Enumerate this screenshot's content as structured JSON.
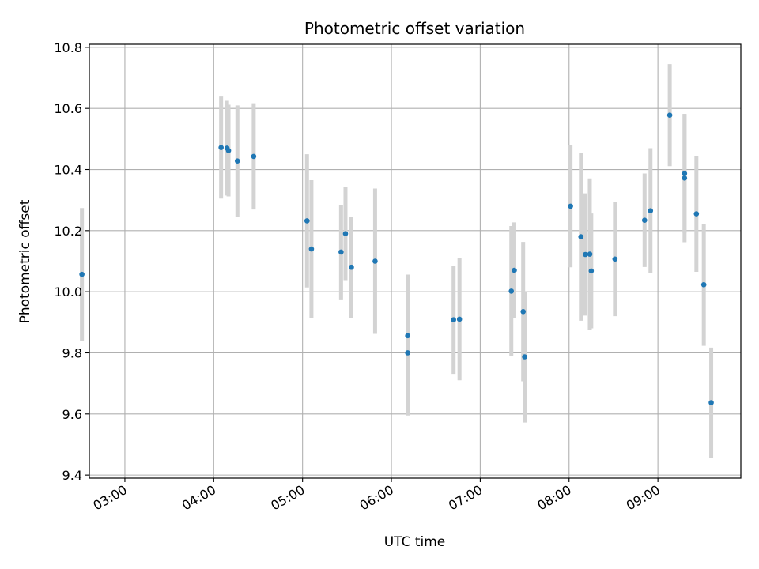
{
  "chart_data": {
    "type": "scatter",
    "title": "Photometric offset variation",
    "xlabel": "UTC time",
    "ylabel": "Photometric offset",
    "xlim": [
      "02:36",
      "09:56"
    ],
    "ylim": [
      9.39,
      10.81
    ],
    "grid": true,
    "x_ticks": [
      "03:00",
      "04:00",
      "05:00",
      "06:00",
      "07:00",
      "08:00",
      "09:00"
    ],
    "y_ticks": [
      9.4,
      9.6,
      9.8,
      10.0,
      10.2,
      10.4,
      10.6,
      10.8
    ],
    "y_tick_labels": [
      "9.4",
      "9.6",
      "9.8",
      "10.0",
      "10.2",
      "10.4",
      "10.6",
      "10.8"
    ],
    "colors": {
      "points": "#1f77b4",
      "errorbars": "#d3d3d3",
      "grid": "#b0b0b0"
    },
    "series": [
      {
        "points": [
          {
            "t": "02:31",
            "y": 10.057,
            "err": 0.217
          },
          {
            "t": "04:05",
            "y": 10.472,
            "err": 0.167
          },
          {
            "t": "04:09",
            "y": 10.47,
            "err": 0.155
          },
          {
            "t": "04:10",
            "y": 10.462,
            "err": 0.15
          },
          {
            "t": "04:16",
            "y": 10.428,
            "err": 0.182
          },
          {
            "t": "04:27",
            "y": 10.443,
            "err": 0.174
          },
          {
            "t": "05:03",
            "y": 10.232,
            "err": 0.218
          },
          {
            "t": "05:06",
            "y": 10.14,
            "err": 0.225
          },
          {
            "t": "05:26",
            "y": 10.13,
            "err": 0.155
          },
          {
            "t": "05:29",
            "y": 10.19,
            "err": 0.152
          },
          {
            "t": "05:33",
            "y": 10.08,
            "err": 0.165
          },
          {
            "t": "05:49",
            "y": 10.1,
            "err": 0.238
          },
          {
            "t": "06:11",
            "y": 9.8,
            "err": 0.205
          },
          {
            "t": "06:11",
            "y": 9.856,
            "err": 0.2
          },
          {
            "t": "06:42",
            "y": 9.908,
            "err": 0.177
          },
          {
            "t": "06:46",
            "y": 9.91,
            "err": 0.2
          },
          {
            "t": "07:21",
            "y": 10.002,
            "err": 0.213
          },
          {
            "t": "07:23",
            "y": 10.07,
            "err": 0.157
          },
          {
            "t": "07:29",
            "y": 9.935,
            "err": 0.228
          },
          {
            "t": "07:30",
            "y": 9.787,
            "err": 0.215
          },
          {
            "t": "08:01",
            "y": 10.28,
            "err": 0.2
          },
          {
            "t": "08:08",
            "y": 10.18,
            "err": 0.275
          },
          {
            "t": "08:11",
            "y": 10.122,
            "err": 0.2
          },
          {
            "t": "08:14",
            "y": 10.123,
            "err": 0.248
          },
          {
            "t": "08:15",
            "y": 10.068,
            "err": 0.188
          },
          {
            "t": "08:31",
            "y": 10.107,
            "err": 0.187
          },
          {
            "t": "08:51",
            "y": 10.234,
            "err": 0.153
          },
          {
            "t": "08:55",
            "y": 10.265,
            "err": 0.205
          },
          {
            "t": "09:08",
            "y": 10.578,
            "err": 0.167
          },
          {
            "t": "09:18",
            "y": 10.387,
            "err": 0.195
          },
          {
            "t": "09:18",
            "y": 10.372,
            "err": 0.21
          },
          {
            "t": "09:26",
            "y": 10.255,
            "err": 0.19
          },
          {
            "t": "09:31",
            "y": 10.023,
            "err": 0.2
          },
          {
            "t": "09:36",
            "y": 9.637,
            "err": 0.18
          }
        ]
      }
    ]
  }
}
